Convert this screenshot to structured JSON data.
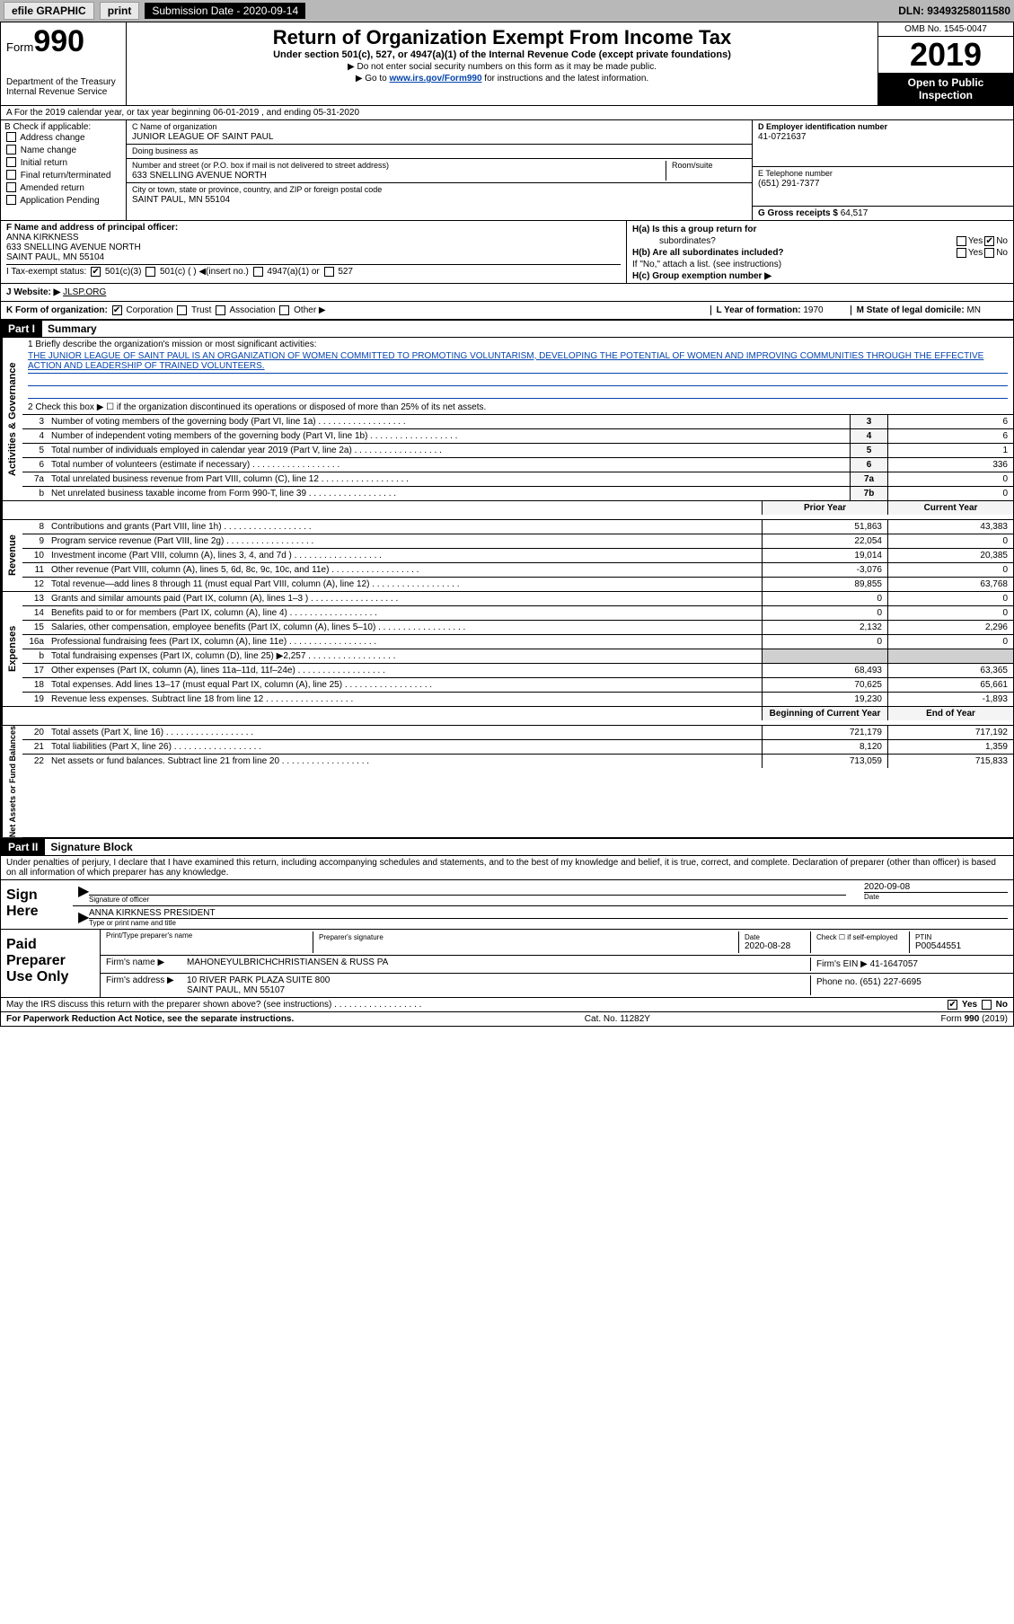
{
  "topbar": {
    "efile": "efile GRAPHIC",
    "print": "print",
    "submission": "Submission Date - 2020-09-14",
    "dln": "DLN: 93493258011580"
  },
  "header": {
    "form_label": "Form",
    "form_num": "990",
    "dept": "Department of the Treasury",
    "irs": "Internal Revenue Service",
    "title": "Return of Organization Exempt From Income Tax",
    "subtitle": "Under section 501(c), 527, or 4947(a)(1) of the Internal Revenue Code (except private foundations)",
    "note1": "▶ Do not enter social security numbers on this form as it may be made public.",
    "note2_pre": "▶ Go to ",
    "note2_link": "www.irs.gov/Form990",
    "note2_post": " for instructions and the latest information.",
    "omb": "OMB No. 1545-0047",
    "year": "2019",
    "inspection1": "Open to Public",
    "inspection2": "Inspection"
  },
  "rowA": "A For the 2019 calendar year, or tax year beginning 06-01-2019   , and ending 05-31-2020",
  "colB": {
    "label": "B Check if applicable:",
    "items": [
      "Address change",
      "Name change",
      "Initial return",
      "Final return/terminated",
      "Amended return",
      "Application Pending"
    ]
  },
  "colC": {
    "name_lbl": "C Name of organization",
    "name": "JUNIOR LEAGUE OF SAINT PAUL",
    "dba_lbl": "Doing business as",
    "dba": "",
    "addr_lbl": "Number and street (or P.O. box if mail is not delivered to street address)",
    "suite_lbl": "Room/suite",
    "addr": "633 SNELLING AVENUE NORTH",
    "city_lbl": "City or town, state or province, country, and ZIP or foreign postal code",
    "city": "SAINT PAUL, MN  55104"
  },
  "colDE": {
    "d_lbl": "D Employer identification number",
    "d_val": "41-0721637",
    "e_lbl": "E Telephone number",
    "e_val": "(651) 291-7377",
    "g_lbl": "G Gross receipts $",
    "g_val": "64,517"
  },
  "rowF": {
    "lbl": "F  Name and address of principal officer:",
    "name": "ANNA KIRKNESS",
    "addr1": "633 SNELLING AVENUE NORTH",
    "addr2": "SAINT PAUL, MN  55104"
  },
  "rowH": {
    "ha": "H(a)  Is this a group return for",
    "ha2": "subordinates?",
    "hb": "H(b)  Are all subordinates included?",
    "hb_note": "If \"No,\" attach a list. (see instructions)",
    "hc": "H(c)  Group exemption number ▶",
    "yes": "Yes",
    "no": "No"
  },
  "rowI": {
    "lbl": "I   Tax-exempt status:",
    "c3": "501(c)(3)",
    "c": "501(c) (  ) ◀(insert no.)",
    "a1": "4947(a)(1) or",
    "s527": "527"
  },
  "rowJ": {
    "lbl": "J   Website: ▶",
    "val": "JLSP.ORG"
  },
  "rowK": {
    "lbl": "K Form of organization:",
    "corp": "Corporation",
    "trust": "Trust",
    "assoc": "Association",
    "other": "Other ▶",
    "l_lbl": "L Year of formation:",
    "l_val": "1970",
    "m_lbl": "M State of legal domicile:",
    "m_val": "MN"
  },
  "part1": {
    "hdr": "Part I",
    "title": "Summary",
    "q1": "1  Briefly describe the organization's mission or most significant activities:",
    "mission": "THE JUNIOR LEAGUE OF SAINT PAUL IS AN ORGANIZATION OF WOMEN COMMITTED TO PROMOTING VOLUNTARISM, DEVELOPING THE POTENTIAL OF WOMEN AND IMPROVING COMMUNITIES THROUGH THE EFFECTIVE ACTION AND LEADERSHIP OF TRAINED VOLUNTEERS.",
    "q2": "2  Check this box ▶ ☐  if the organization discontinued its operations or disposed of more than 25% of its net assets."
  },
  "activities": {
    "side": "Activities & Governance",
    "rows": [
      {
        "n": "3",
        "d": "Number of voting members of the governing body (Part VI, line 1a)",
        "box": "3",
        "v": "6"
      },
      {
        "n": "4",
        "d": "Number of independent voting members of the governing body (Part VI, line 1b)",
        "box": "4",
        "v": "6"
      },
      {
        "n": "5",
        "d": "Total number of individuals employed in calendar year 2019 (Part V, line 2a)",
        "box": "5",
        "v": "1"
      },
      {
        "n": "6",
        "d": "Total number of volunteers (estimate if necessary)",
        "box": "6",
        "v": "336"
      },
      {
        "n": "7a",
        "d": "Total unrelated business revenue from Part VIII, column (C), line 12",
        "box": "7a",
        "v": "0"
      },
      {
        "n": "b",
        "d": "Net unrelated business taxable income from Form 990-T, line 39",
        "box": "7b",
        "v": "0"
      }
    ]
  },
  "two_col_hdr": {
    "prior": "Prior Year",
    "current": "Current Year"
  },
  "revenue": {
    "side": "Revenue",
    "rows": [
      {
        "n": "8",
        "d": "Contributions and grants (Part VIII, line 1h)",
        "p": "51,863",
        "c": "43,383"
      },
      {
        "n": "9",
        "d": "Program service revenue (Part VIII, line 2g)",
        "p": "22,054",
        "c": "0"
      },
      {
        "n": "10",
        "d": "Investment income (Part VIII, column (A), lines 3, 4, and 7d )",
        "p": "19,014",
        "c": "20,385"
      },
      {
        "n": "11",
        "d": "Other revenue (Part VIII, column (A), lines 5, 6d, 8c, 9c, 10c, and 11e)",
        "p": "-3,076",
        "c": "0"
      },
      {
        "n": "12",
        "d": "Total revenue—add lines 8 through 11 (must equal Part VIII, column (A), line 12)",
        "p": "89,855",
        "c": "63,768"
      }
    ]
  },
  "expenses": {
    "side": "Expenses",
    "rows": [
      {
        "n": "13",
        "d": "Grants and similar amounts paid (Part IX, column (A), lines 1–3 )",
        "p": "0",
        "c": "0"
      },
      {
        "n": "14",
        "d": "Benefits paid to or for members (Part IX, column (A), line 4)",
        "p": "0",
        "c": "0"
      },
      {
        "n": "15",
        "d": "Salaries, other compensation, employee benefits (Part IX, column (A), lines 5–10)",
        "p": "2,132",
        "c": "2,296"
      },
      {
        "n": "16a",
        "d": "Professional fundraising fees (Part IX, column (A), line 11e)",
        "p": "0",
        "c": "0"
      },
      {
        "n": "b",
        "d": "Total fundraising expenses (Part IX, column (D), line 25) ▶2,257",
        "p": "",
        "c": "",
        "grey": true
      },
      {
        "n": "17",
        "d": "Other expenses (Part IX, column (A), lines 11a–11d, 11f–24e)",
        "p": "68,493",
        "c": "63,365"
      },
      {
        "n": "18",
        "d": "Total expenses. Add lines 13–17 (must equal Part IX, column (A), line 25)",
        "p": "70,625",
        "c": "65,661"
      },
      {
        "n": "19",
        "d": "Revenue less expenses. Subtract line 18 from line 12",
        "p": "19,230",
        "c": "-1,893"
      }
    ]
  },
  "netassets_hdr": {
    "begin": "Beginning of Current Year",
    "end": "End of Year"
  },
  "netassets": {
    "side": "Net Assets or Fund Balances",
    "rows": [
      {
        "n": "20",
        "d": "Total assets (Part X, line 16)",
        "p": "721,179",
        "c": "717,192"
      },
      {
        "n": "21",
        "d": "Total liabilities (Part X, line 26)",
        "p": "8,120",
        "c": "1,359"
      },
      {
        "n": "22",
        "d": "Net assets or fund balances. Subtract line 21 from line 20",
        "p": "713,059",
        "c": "715,833"
      }
    ]
  },
  "part2": {
    "hdr": "Part II",
    "title": "Signature Block",
    "penalty": "Under penalties of perjury, I declare that I have examined this return, including accompanying schedules and statements, and to the best of my knowledge and belief, it is true, correct, and complete. Declaration of preparer (other than officer) is based on all information of which preparer has any knowledge."
  },
  "sign": {
    "lbl": "Sign Here",
    "sig_lbl": "Signature of officer",
    "date_lbl": "Date",
    "date": "2020-09-08",
    "name": "ANNA KIRKNESS PRESIDENT",
    "name_lbl": "Type or print name and title"
  },
  "prep": {
    "lbl": "Paid Preparer Use Only",
    "print_lbl": "Print/Type preparer's name",
    "sig_lbl": "Preparer's signature",
    "date_lbl": "Date",
    "date": "2020-08-28",
    "check_lbl": "Check ☐ if self-employed",
    "ptin_lbl": "PTIN",
    "ptin": "P00544551",
    "firm_lbl": "Firm's name   ▶",
    "firm": "MAHONEYULBRICHCHRISTIANSEN & RUSS PA",
    "ein_lbl": "Firm's EIN ▶",
    "ein": "41-1647057",
    "addr_lbl": "Firm's address ▶",
    "addr1": "10 RIVER PARK PLAZA SUITE 800",
    "addr2": "SAINT PAUL, MN  55107",
    "phone_lbl": "Phone no.",
    "phone": "(651) 227-6695"
  },
  "discuss": "May the IRS discuss this return with the preparer shown above? (see instructions)",
  "footer": {
    "pra": "For Paperwork Reduction Act Notice, see the separate instructions.",
    "cat": "Cat. No. 11282Y",
    "form": "Form 990 (2019)"
  }
}
